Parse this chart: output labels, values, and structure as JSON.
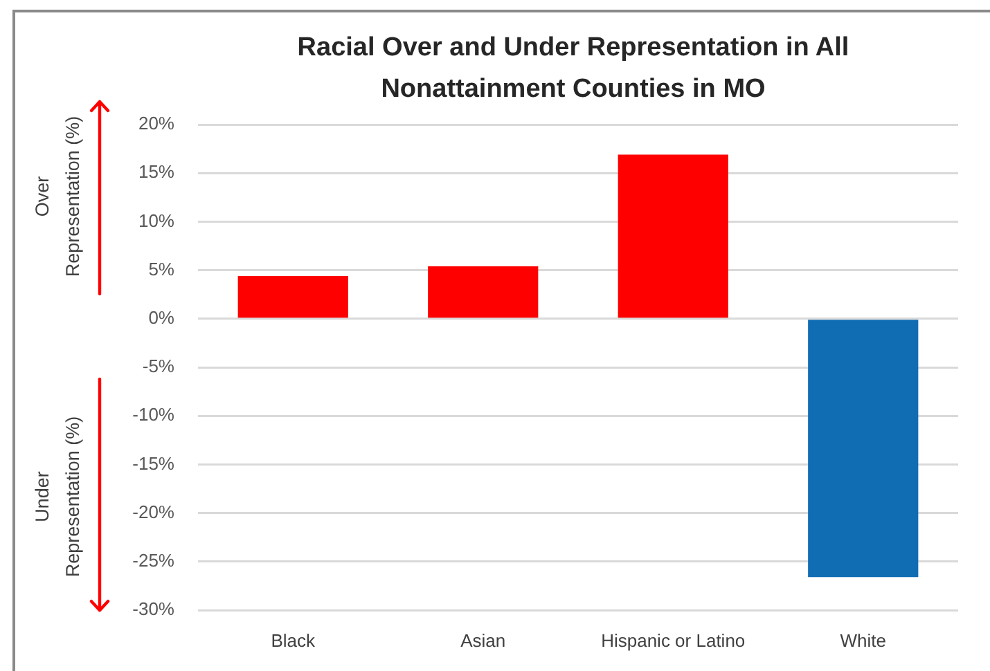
{
  "chart_data": {
    "type": "bar",
    "title": "Racial Over and Under Representation in All Nonattainment Counties in MO",
    "categories": [
      "Black",
      "Asian",
      "Hispanic or Latino",
      "White"
    ],
    "values": [
      4.4,
      5.4,
      16.9,
      -26.6
    ],
    "colors": [
      "#ff0000",
      "#ff0000",
      "#ff0000",
      "#106cb3"
    ],
    "ylim": [
      -30,
      20
    ],
    "yticks": [
      {
        "value": -30,
        "label": "-30%"
      },
      {
        "value": -25,
        "label": "-25%"
      },
      {
        "value": -20,
        "label": "-20%"
      },
      {
        "value": -15,
        "label": "-15%"
      },
      {
        "value": -10,
        "label": "-10%"
      },
      {
        "value": -5,
        "label": "-5%"
      },
      {
        "value": 0,
        "label": "0%"
      },
      {
        "value": 5,
        "label": "5%"
      },
      {
        "value": 10,
        "label": "10%"
      },
      {
        "value": 15,
        "label": "15%"
      },
      {
        "value": 20,
        "label": "20%"
      }
    ],
    "grid": "y",
    "annotations": [
      "Over Representation (%)",
      "Under Representation (%)"
    ]
  }
}
